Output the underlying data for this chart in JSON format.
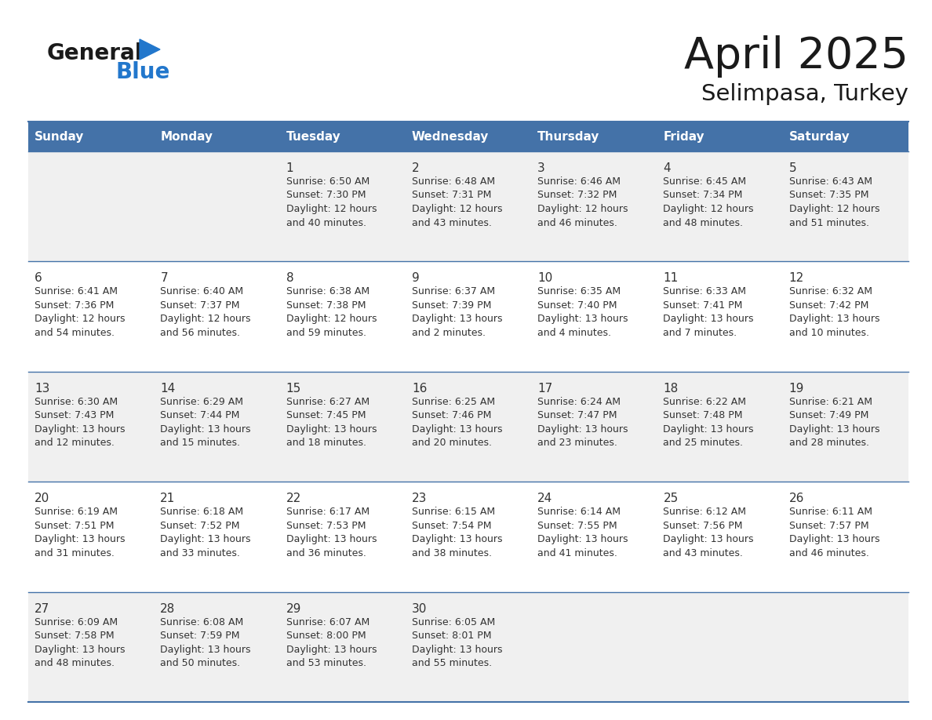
{
  "title": "April 2025",
  "subtitle": "Selimpasa, Turkey",
  "header_bg": "#4472A8",
  "header_text": "#ffffff",
  "cell_bg_odd": "#f0f0f0",
  "cell_bg_even": "#ffffff",
  "row_line_color": "#4472A8",
  "day_names": [
    "Sunday",
    "Monday",
    "Tuesday",
    "Wednesday",
    "Thursday",
    "Friday",
    "Saturday"
  ],
  "logo_color1": "#1a1a1a",
  "logo_color2": "#2277cc",
  "title_color": "#1a1a1a",
  "text_color": "#333333",
  "days": [
    {
      "day": 1,
      "col": 2,
      "row": 0,
      "sunrise": "6:50 AM",
      "sunset": "7:30 PM",
      "daylight_h": "12 hours",
      "daylight_m": "and 40 minutes."
    },
    {
      "day": 2,
      "col": 3,
      "row": 0,
      "sunrise": "6:48 AM",
      "sunset": "7:31 PM",
      "daylight_h": "12 hours",
      "daylight_m": "and 43 minutes."
    },
    {
      "day": 3,
      "col": 4,
      "row": 0,
      "sunrise": "6:46 AM",
      "sunset": "7:32 PM",
      "daylight_h": "12 hours",
      "daylight_m": "and 46 minutes."
    },
    {
      "day": 4,
      "col": 5,
      "row": 0,
      "sunrise": "6:45 AM",
      "sunset": "7:34 PM",
      "daylight_h": "12 hours",
      "daylight_m": "and 48 minutes."
    },
    {
      "day": 5,
      "col": 6,
      "row": 0,
      "sunrise": "6:43 AM",
      "sunset": "7:35 PM",
      "daylight_h": "12 hours",
      "daylight_m": "and 51 minutes."
    },
    {
      "day": 6,
      "col": 0,
      "row": 1,
      "sunrise": "6:41 AM",
      "sunset": "7:36 PM",
      "daylight_h": "12 hours",
      "daylight_m": "and 54 minutes."
    },
    {
      "day": 7,
      "col": 1,
      "row": 1,
      "sunrise": "6:40 AM",
      "sunset": "7:37 PM",
      "daylight_h": "12 hours",
      "daylight_m": "and 56 minutes."
    },
    {
      "day": 8,
      "col": 2,
      "row": 1,
      "sunrise": "6:38 AM",
      "sunset": "7:38 PM",
      "daylight_h": "12 hours",
      "daylight_m": "and 59 minutes."
    },
    {
      "day": 9,
      "col": 3,
      "row": 1,
      "sunrise": "6:37 AM",
      "sunset": "7:39 PM",
      "daylight_h": "13 hours",
      "daylight_m": "and 2 minutes."
    },
    {
      "day": 10,
      "col": 4,
      "row": 1,
      "sunrise": "6:35 AM",
      "sunset": "7:40 PM",
      "daylight_h": "13 hours",
      "daylight_m": "and 4 minutes."
    },
    {
      "day": 11,
      "col": 5,
      "row": 1,
      "sunrise": "6:33 AM",
      "sunset": "7:41 PM",
      "daylight_h": "13 hours",
      "daylight_m": "and 7 minutes."
    },
    {
      "day": 12,
      "col": 6,
      "row": 1,
      "sunrise": "6:32 AM",
      "sunset": "7:42 PM",
      "daylight_h": "13 hours",
      "daylight_m": "and 10 minutes."
    },
    {
      "day": 13,
      "col": 0,
      "row": 2,
      "sunrise": "6:30 AM",
      "sunset": "7:43 PM",
      "daylight_h": "13 hours",
      "daylight_m": "and 12 minutes."
    },
    {
      "day": 14,
      "col": 1,
      "row": 2,
      "sunrise": "6:29 AM",
      "sunset": "7:44 PM",
      "daylight_h": "13 hours",
      "daylight_m": "and 15 minutes."
    },
    {
      "day": 15,
      "col": 2,
      "row": 2,
      "sunrise": "6:27 AM",
      "sunset": "7:45 PM",
      "daylight_h": "13 hours",
      "daylight_m": "and 18 minutes."
    },
    {
      "day": 16,
      "col": 3,
      "row": 2,
      "sunrise": "6:25 AM",
      "sunset": "7:46 PM",
      "daylight_h": "13 hours",
      "daylight_m": "and 20 minutes."
    },
    {
      "day": 17,
      "col": 4,
      "row": 2,
      "sunrise": "6:24 AM",
      "sunset": "7:47 PM",
      "daylight_h": "13 hours",
      "daylight_m": "and 23 minutes."
    },
    {
      "day": 18,
      "col": 5,
      "row": 2,
      "sunrise": "6:22 AM",
      "sunset": "7:48 PM",
      "daylight_h": "13 hours",
      "daylight_m": "and 25 minutes."
    },
    {
      "day": 19,
      "col": 6,
      "row": 2,
      "sunrise": "6:21 AM",
      "sunset": "7:49 PM",
      "daylight_h": "13 hours",
      "daylight_m": "and 28 minutes."
    },
    {
      "day": 20,
      "col": 0,
      "row": 3,
      "sunrise": "6:19 AM",
      "sunset": "7:51 PM",
      "daylight_h": "13 hours",
      "daylight_m": "and 31 minutes."
    },
    {
      "day": 21,
      "col": 1,
      "row": 3,
      "sunrise": "6:18 AM",
      "sunset": "7:52 PM",
      "daylight_h": "13 hours",
      "daylight_m": "and 33 minutes."
    },
    {
      "day": 22,
      "col": 2,
      "row": 3,
      "sunrise": "6:17 AM",
      "sunset": "7:53 PM",
      "daylight_h": "13 hours",
      "daylight_m": "and 36 minutes."
    },
    {
      "day": 23,
      "col": 3,
      "row": 3,
      "sunrise": "6:15 AM",
      "sunset": "7:54 PM",
      "daylight_h": "13 hours",
      "daylight_m": "and 38 minutes."
    },
    {
      "day": 24,
      "col": 4,
      "row": 3,
      "sunrise": "6:14 AM",
      "sunset": "7:55 PM",
      "daylight_h": "13 hours",
      "daylight_m": "and 41 minutes."
    },
    {
      "day": 25,
      "col": 5,
      "row": 3,
      "sunrise": "6:12 AM",
      "sunset": "7:56 PM",
      "daylight_h": "13 hours",
      "daylight_m": "and 43 minutes."
    },
    {
      "day": 26,
      "col": 6,
      "row": 3,
      "sunrise": "6:11 AM",
      "sunset": "7:57 PM",
      "daylight_h": "13 hours",
      "daylight_m": "and 46 minutes."
    },
    {
      "day": 27,
      "col": 0,
      "row": 4,
      "sunrise": "6:09 AM",
      "sunset": "7:58 PM",
      "daylight_h": "13 hours",
      "daylight_m": "and 48 minutes."
    },
    {
      "day": 28,
      "col": 1,
      "row": 4,
      "sunrise": "6:08 AM",
      "sunset": "7:59 PM",
      "daylight_h": "13 hours",
      "daylight_m": "and 50 minutes."
    },
    {
      "day": 29,
      "col": 2,
      "row": 4,
      "sunrise": "6:07 AM",
      "sunset": "8:00 PM",
      "daylight_h": "13 hours",
      "daylight_m": "and 53 minutes."
    },
    {
      "day": 30,
      "col": 3,
      "row": 4,
      "sunrise": "6:05 AM",
      "sunset": "8:01 PM",
      "daylight_h": "13 hours",
      "daylight_m": "and 55 minutes."
    }
  ]
}
